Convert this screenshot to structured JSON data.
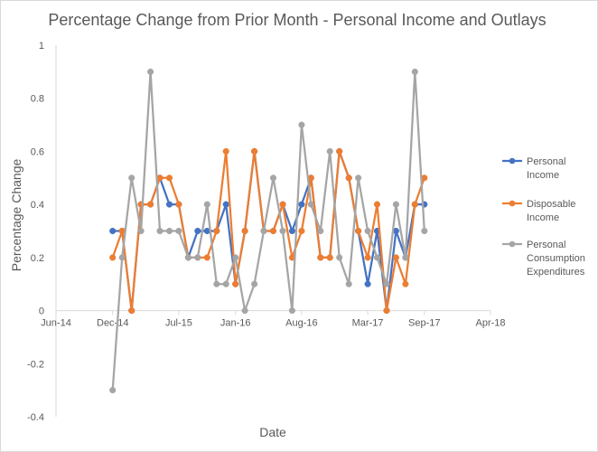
{
  "chart_data": {
    "type": "line",
    "title": "Percentage Change from Prior Month - Personal Income and Outlays",
    "xlabel": "Date",
    "ylabel": "Percentage Change",
    "ylim": [
      -0.4,
      1
    ],
    "y_ticks": [
      "1",
      "0.8",
      "0.6",
      "0.4",
      "0.2",
      "0",
      "-0.2",
      "-0.4"
    ],
    "y_tick_values": [
      1,
      0.8,
      0.6,
      0.4,
      0.2,
      0,
      -0.2,
      -0.4
    ],
    "x_ticks": [
      "Jun-14",
      "Dec-14",
      "Jul-15",
      "Jan-16",
      "Aug-16",
      "Mar-17",
      "Sep-17",
      "Apr-18"
    ],
    "x_tick_months": [
      0,
      6,
      13,
      19,
      26,
      33,
      39,
      46
    ],
    "x_month_start": "Jun-14",
    "x_range_months": [
      0,
      46
    ],
    "x": [
      "Dec-14",
      "Jan-15",
      "Feb-15",
      "Mar-15",
      "Apr-15",
      "May-15",
      "Jun-15",
      "Jul-15",
      "Aug-15",
      "Sep-15",
      "Oct-15",
      "Nov-15",
      "Dec-15",
      "Jan-16",
      "Feb-16",
      "Mar-16",
      "Apr-16",
      "May-16",
      "Jun-16",
      "Jul-16",
      "Aug-16",
      "Sep-16",
      "Oct-16",
      "Nov-16",
      "Dec-16",
      "Jan-17",
      "Feb-17",
      "Mar-17",
      "Apr-17",
      "May-17",
      "Jun-17",
      "Jul-17",
      "Aug-17",
      "Sep-17",
      "Oct-17"
    ],
    "x_months": [
      6,
      7,
      8,
      9,
      10,
      11,
      12,
      13,
      14,
      15,
      16,
      17,
      18,
      19,
      20,
      21,
      22,
      23,
      24,
      25,
      26,
      27,
      28,
      29,
      30,
      31,
      32,
      33,
      34,
      35,
      36,
      37,
      38,
      39,
      40
    ],
    "series": [
      {
        "name": "Personal Income",
        "color": "#4472c4",
        "values": [
          0.3,
          0.3,
          0.0,
          0.4,
          0.4,
          0.5,
          0.4,
          0.4,
          0.2,
          0.3,
          0.3,
          0.3,
          0.4,
          0.1,
          0.3,
          0.6,
          0.3,
          0.3,
          0.4,
          0.3,
          0.4,
          0.5,
          0.2,
          0.2,
          0.6,
          0.5,
          0.3,
          0.1,
          0.3,
          0.0,
          0.3,
          0.2,
          0.4,
          0.4,
          null
        ]
      },
      {
        "name": "Disposable Income",
        "color": "#ed7d31",
        "values": [
          0.2,
          0.3,
          0.0,
          0.4,
          0.4,
          0.5,
          0.5,
          0.4,
          0.2,
          0.2,
          0.2,
          0.3,
          0.6,
          0.1,
          0.3,
          0.6,
          0.3,
          0.3,
          0.4,
          0.2,
          0.3,
          0.5,
          0.2,
          0.2,
          0.6,
          0.5,
          0.3,
          0.2,
          0.4,
          0.0,
          0.2,
          0.1,
          0.4,
          0.5,
          null
        ]
      },
      {
        "name": "Personal Consumption Expenditures",
        "color": "#a5a5a5",
        "values": [
          -0.3,
          0.2,
          0.5,
          0.3,
          0.9,
          0.3,
          0.3,
          0.3,
          0.2,
          0.2,
          0.4,
          0.1,
          0.1,
          0.2,
          0.0,
          0.1,
          0.3,
          0.5,
          0.3,
          0.0,
          0.7,
          0.4,
          0.3,
          0.6,
          0.2,
          0.1,
          0.5,
          0.3,
          0.2,
          0.1,
          0.4,
          0.2,
          0.9,
          0.3,
          null
        ]
      }
    ],
    "legend": {
      "position": "right",
      "entries": [
        {
          "lines": [
            "Personal",
            "Income"
          ],
          "color": "#4472c4"
        },
        {
          "lines": [
            "Disposable",
            "Income"
          ],
          "color": "#ed7d31"
        },
        {
          "lines": [
            "Personal",
            "Consumption",
            "Expenditures"
          ],
          "color": "#a5a5a5"
        }
      ]
    },
    "grid": false
  }
}
